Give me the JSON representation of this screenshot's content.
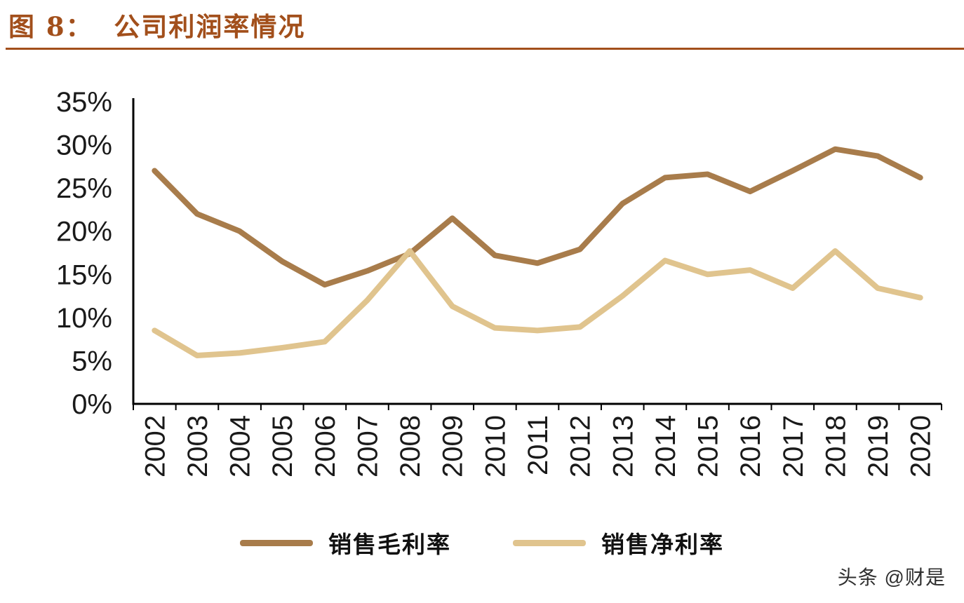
{
  "header": {
    "title": "图 8：  公司利润率情况",
    "accent_color": "#A24F1B"
  },
  "chart_data": {
    "type": "line",
    "title": "公司利润率情况",
    "categories": [
      "2002",
      "2003",
      "2004",
      "2005",
      "2006",
      "2007",
      "2008",
      "2009",
      "2010",
      "2011",
      "2012",
      "2013",
      "2014",
      "2015",
      "2016",
      "2017",
      "2018",
      "2019",
      "2020"
    ],
    "series": [
      {
        "name": "销售毛利率",
        "color": "#A87C4B",
        "values": [
          27.0,
          22.0,
          20.0,
          16.5,
          13.8,
          15.4,
          17.4,
          21.5,
          17.2,
          16.3,
          17.9,
          23.2,
          26.2,
          26.6,
          24.6,
          27.0,
          29.5,
          28.7,
          26.2
        ]
      },
      {
        "name": "销售净利率",
        "color": "#E0C48E",
        "values": [
          8.5,
          5.6,
          5.9,
          6.5,
          7.2,
          12.0,
          17.7,
          11.3,
          8.8,
          8.5,
          8.9,
          12.5,
          16.6,
          15.0,
          15.5,
          13.4,
          17.7,
          13.4,
          12.3
        ]
      }
    ],
    "ylim": [
      0,
      35
    ],
    "ytick_step": 5,
    "ytick_labels": [
      "0%",
      "5%",
      "10%",
      "15%",
      "20%",
      "25%",
      "30%",
      "35%"
    ],
    "grid": false,
    "legend_position": "bottom",
    "x_label_rotation": -90
  },
  "watermark": "头条 @财是"
}
